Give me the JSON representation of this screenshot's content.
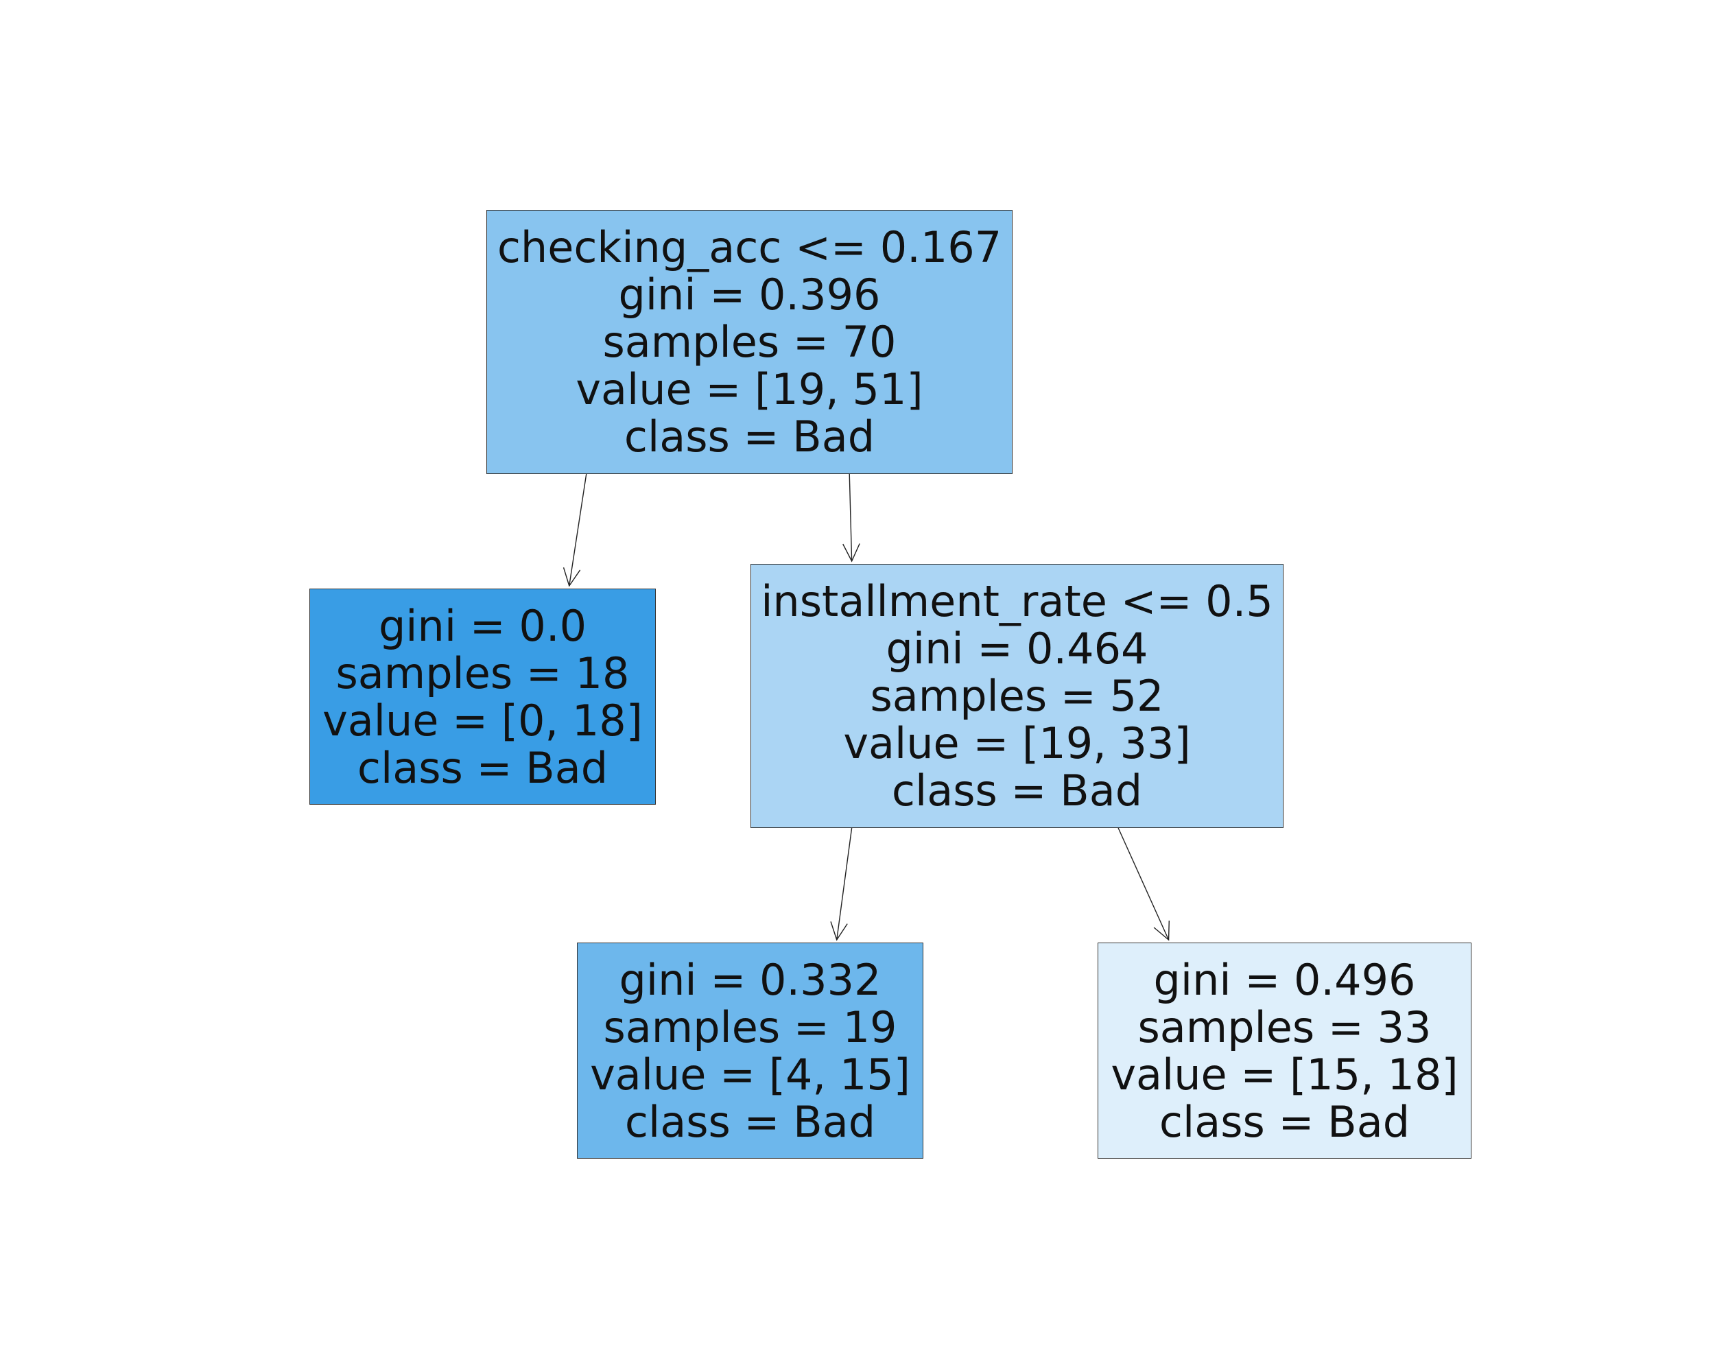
{
  "tree": {
    "nodes": {
      "root": {
        "split": "checking_acc <= 0.167",
        "gini": "gini = 0.396",
        "samples": "samples = 70",
        "value": "value = [19, 51]",
        "class": "class = Bad",
        "fill": "#88c4ef"
      },
      "left": {
        "gini": "gini = 0.0",
        "samples": "samples = 18",
        "value": "value = [0, 18]",
        "class": "class = Bad",
        "fill": "#399de5"
      },
      "right": {
        "split": "installment_rate <= 0.5",
        "gini": "gini = 0.464",
        "samples": "samples = 52",
        "value": "value = [19, 33]",
        "class": "class = Bad",
        "fill": "#abd5f4"
      },
      "right_left": {
        "gini": "gini = 0.332",
        "samples": "samples = 19",
        "value": "value = [4, 15]",
        "class": "class = Bad",
        "fill": "#6db7ec"
      },
      "right_right": {
        "gini": "gini = 0.496",
        "samples": "samples = 33",
        "value": "value = [15, 18]",
        "class": "class = Bad",
        "fill": "#deeffb"
      }
    },
    "edges": [
      {
        "from": "root",
        "to": "left"
      },
      {
        "from": "root",
        "to": "right"
      },
      {
        "from": "right",
        "to": "right_left"
      },
      {
        "from": "right",
        "to": "right_right"
      }
    ]
  }
}
